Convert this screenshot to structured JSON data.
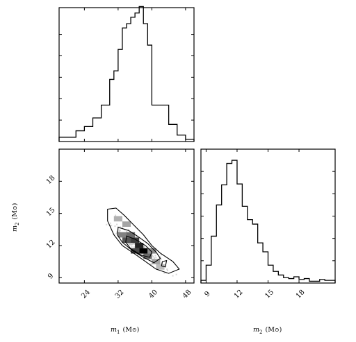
{
  "chart_data": [
    {
      "type": "bar",
      "panel": "m1 marginal histogram",
      "xlim": [
        18,
        50
      ],
      "ylim": [
        0,
        0.125
      ],
      "bin_edges": [
        18,
        20,
        22,
        24,
        26,
        28,
        30,
        31,
        32,
        33,
        34,
        35,
        36,
        37,
        38,
        39,
        40,
        42,
        44,
        46,
        48,
        50
      ],
      "values": [
        0.004,
        0.004,
        0.01,
        0.014,
        0.022,
        0.034,
        0.058,
        0.066,
        0.086,
        0.106,
        0.11,
        0.116,
        0.12,
        0.126,
        0.11,
        0.09,
        0.034,
        0.034,
        0.016,
        0.006,
        0.002
      ],
      "grid": false
    },
    {
      "type": "heatmap",
      "panel": "joint m1-m2",
      "xlabel": "m",
      "xlabel_sub": "1",
      "xlabel_unit": "(M",
      "xlabel_unit_close": ")",
      "ylabel": "m",
      "ylabel_sub": "2",
      "ylabel_unit": "(M",
      "ylabel_unit_close": ")",
      "xlim": [
        18,
        50
      ],
      "ylim": [
        8.5,
        21
      ],
      "xticks": [
        "24",
        "32",
        "40",
        "48"
      ],
      "xtick_values": [
        24,
        32,
        40,
        48
      ],
      "yticks": [
        "9",
        "12",
        "15",
        "18"
      ],
      "ytick_values": [
        9,
        12,
        15,
        18
      ],
      "density_cells": [
        {
          "x": 32,
          "y": 14.5,
          "level": 0.25
        },
        {
          "x": 34,
          "y": 14.0,
          "level": 0.3
        },
        {
          "x": 33,
          "y": 13.0,
          "level": 0.45
        },
        {
          "x": 35,
          "y": 13.0,
          "level": 0.55
        },
        {
          "x": 34,
          "y": 12.5,
          "level": 0.65
        },
        {
          "x": 36,
          "y": 12.5,
          "level": 0.75
        },
        {
          "x": 37,
          "y": 12.0,
          "level": 0.85
        },
        {
          "x": 38,
          "y": 11.5,
          "level": 1.0
        },
        {
          "x": 36,
          "y": 11.5,
          "level": 0.7
        },
        {
          "x": 39,
          "y": 11.0,
          "level": 0.55
        },
        {
          "x": 40,
          "y": 11.5,
          "level": 0.4
        },
        {
          "x": 41,
          "y": 10.5,
          "level": 0.3
        },
        {
          "x": 42,
          "y": 10.0,
          "level": 0.2
        }
      ],
      "contours": [
        [
          [
            29.5,
            15.4
          ],
          [
            31.5,
            15.5
          ],
          [
            33.5,
            14.8
          ],
          [
            35.5,
            14.0
          ],
          [
            38.0,
            13.0
          ],
          [
            40.0,
            12.0
          ],
          [
            42.0,
            11.3
          ],
          [
            45.0,
            10.5
          ],
          [
            46.5,
            9.8
          ],
          [
            44.0,
            9.4
          ],
          [
            41.0,
            9.8
          ],
          [
            38.5,
            10.5
          ],
          [
            36.0,
            11.2
          ],
          [
            33.0,
            12.0
          ],
          [
            31.0,
            13.0
          ],
          [
            29.5,
            14.3
          ]
        ],
        [
          [
            32.0,
            13.7
          ],
          [
            34.5,
            13.4
          ],
          [
            36.5,
            12.9
          ],
          [
            39.0,
            12.2
          ],
          [
            41.0,
            11.4
          ],
          [
            42.0,
            10.8
          ],
          [
            40.5,
            10.4
          ],
          [
            38.0,
            10.9
          ],
          [
            35.5,
            11.5
          ],
          [
            33.0,
            12.3
          ],
          [
            31.8,
            13.0
          ]
        ],
        [
          [
            34.0,
            12.9
          ],
          [
            36.0,
            12.6
          ],
          [
            38.5,
            12.0
          ],
          [
            40.0,
            11.4
          ],
          [
            39.5,
            10.9
          ],
          [
            37.5,
            11.1
          ],
          [
            35.0,
            11.7
          ],
          [
            33.8,
            12.3
          ]
        ],
        [
          [
            42.5,
            10.5
          ],
          [
            43.5,
            10.6
          ],
          [
            43.2,
            10.0
          ],
          [
            42.3,
            10.1
          ]
        ]
      ],
      "grid": false
    },
    {
      "type": "bar",
      "panel": "m2 marginal histogram",
      "xlabel": "m",
      "xlabel_sub": "2",
      "xlabel_unit": "(M",
      "xlabel_unit_close": ")",
      "xlim": [
        8.5,
        21.5
      ],
      "ylim": [
        0,
        0.3
      ],
      "xticks": [
        "9",
        "12",
        "15",
        "18"
      ],
      "xtick_values": [
        9,
        12,
        15,
        18
      ],
      "bin_edges": [
        8.5,
        9.0,
        9.5,
        10.0,
        10.5,
        11.0,
        11.5,
        12.0,
        12.5,
        13.0,
        13.5,
        14.0,
        14.5,
        15.0,
        15.5,
        16.0,
        16.5,
        17.0,
        17.5,
        18.0,
        18.5,
        19.0,
        19.5,
        20.0,
        20.5,
        21.0,
        21.5
      ],
      "values": [
        0.006,
        0.04,
        0.105,
        0.175,
        0.22,
        0.268,
        0.275,
        0.222,
        0.172,
        0.142,
        0.132,
        0.09,
        0.07,
        0.04,
        0.026,
        0.018,
        0.012,
        0.01,
        0.014,
        0.008,
        0.01,
        0.004,
        0.004,
        0.008,
        0.006,
        0.006
      ],
      "grid": false
    }
  ],
  "icons": {
    "sun_symbol": "odot-icon"
  }
}
